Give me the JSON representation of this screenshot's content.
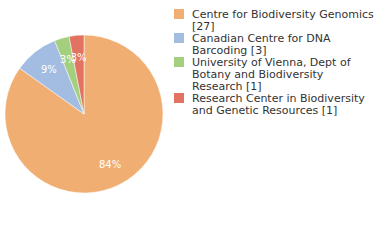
{
  "chart_data": {
    "type": "pie",
    "categories": [
      "Centre for Biodiversity Genomics [27]",
      "Canadian Centre for DNA Barcoding [3]",
      "University of Vienna, Dept of Botany and Biodiversity Research [1]",
      "Research Center in Biodiversity and Genetic Resources [1]"
    ],
    "values": [
      84,
      9,
      3,
      3
    ],
    "value_labels": [
      "84%",
      "9%",
      "3%",
      "3%"
    ],
    "colors": [
      "#f0ae72",
      "#a3bde2",
      "#a4cf7e",
      "#e27362"
    ],
    "data_labels": true
  }
}
